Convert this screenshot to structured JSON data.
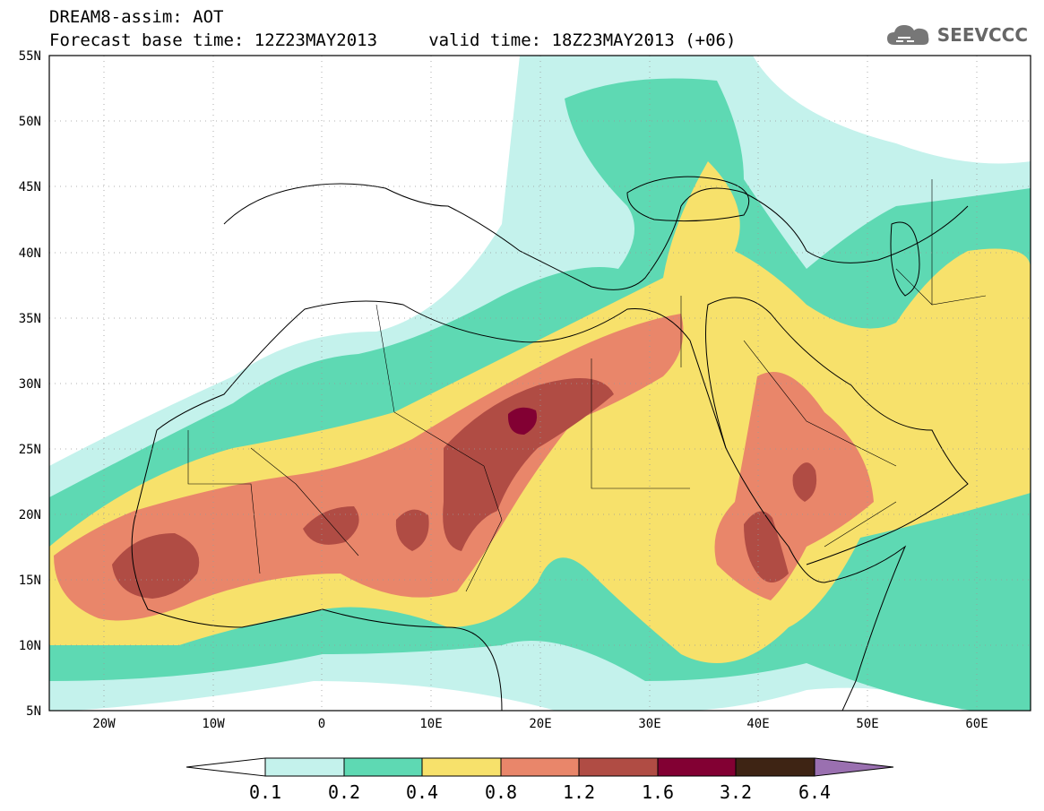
{
  "header": {
    "title": "DREAM8-assim: AOT",
    "subtitle": "Forecast base time: 12Z23MAY2013     valid time: 18Z23MAY2013 (+06)",
    "brand": "SEEVCCC"
  },
  "map": {
    "lon_range": [
      -25,
      65
    ],
    "lat_range": [
      5,
      55
    ],
    "lat_labels": [
      "55N",
      "50N",
      "45N",
      "40N",
      "35N",
      "30N",
      "25N",
      "20N",
      "15N",
      "10N",
      "5N"
    ],
    "lon_labels": [
      "20W",
      "10W",
      "0",
      "10E",
      "20E",
      "30E",
      "40E",
      "50E",
      "60E"
    ]
  },
  "colorbar": {
    "labels": [
      "0.1",
      "0.2",
      "0.4",
      "0.8",
      "1.2",
      "1.6",
      "3.2",
      "6.4"
    ],
    "colors": [
      "#c4f2ec",
      "#5ed9b3",
      "#f7e16b",
      "#e9866a",
      "#b04c44",
      "#820033",
      "#3e2414",
      "#9a70b0"
    ]
  }
}
